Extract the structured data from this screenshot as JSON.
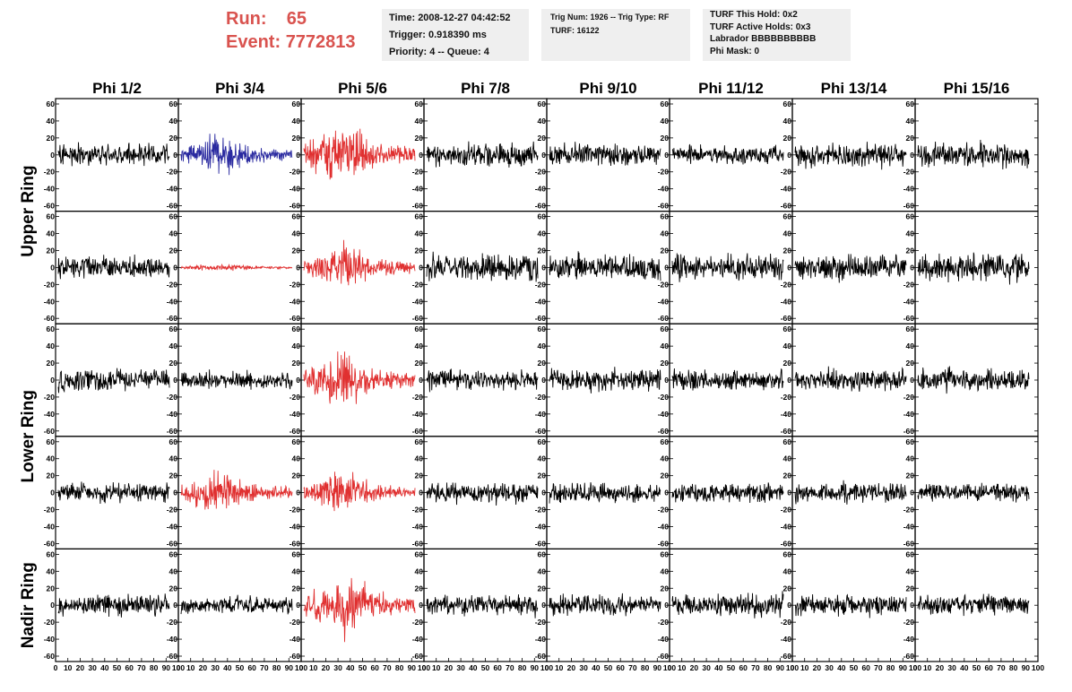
{
  "header": {
    "run_label": "Run:",
    "run_value": "65",
    "event_label": "Event:",
    "event_value": "7772813"
  },
  "info_panels": [
    {
      "lines": [
        "Time: 2008-12-27 04:42:52",
        "Trigger: 0.918390 ms",
        "Priority: 4 -- Queue: 4"
      ]
    },
    {
      "lines": [
        "Trig Num: 1926 -- Trig Type: RF",
        "",
        "",
        "TURF: 16122"
      ]
    },
    {
      "lines": [
        "TURF This Hold: 0x2",
        "TURF Active Holds: 0x3",
        "Labrador BBBBBBBBBB",
        "Phi Mask: 0"
      ]
    }
  ],
  "colors": {
    "normal_trace": "#000000",
    "triggered_trace": "#e03030",
    "highlight_trace": "#2a2aa0",
    "run_text": "#d9534f",
    "panel_bg": "#efefef"
  },
  "chart_data": {
    "type": "line",
    "description_grid": "waveform matrix",
    "columns": [
      "Phi 1/2",
      "Phi 3/4",
      "Phi 5/6",
      "Phi 7/8",
      "Phi 9/10",
      "Phi 11/12",
      "Phi 13/14",
      "Phi 15/16"
    ],
    "rows": [
      "Upper Ring",
      "",
      "Lower Ring",
      "",
      "Nadir Ring"
    ],
    "row_labels": [
      {
        "label": "Upper Ring",
        "rows": [
          0,
          1
        ]
      },
      {
        "label": "Lower Ring",
        "rows": [
          2,
          3
        ]
      },
      {
        "label": "Nadir Ring",
        "rows": [
          4
        ]
      }
    ],
    "ylim": [
      -60,
      60
    ],
    "yticks": [
      -60,
      -40,
      -20,
      0,
      20,
      40,
      60
    ],
    "xlim": [
      0,
      100
    ],
    "xticks": [
      0,
      10,
      20,
      30,
      40,
      50,
      60,
      70,
      80,
      90,
      100
    ],
    "x_tick_labels": [
      "0",
      "10",
      "20",
      "30",
      "40",
      "50",
      "60",
      "70",
      "80",
      "90",
      "100"
    ],
    "grid": false,
    "traces": [
      [
        "black",
        "blue",
        "red",
        "black",
        "black",
        "black",
        "black",
        "black"
      ],
      [
        "black",
        "red",
        "red",
        "black",
        "black",
        "black",
        "black",
        "black"
      ],
      [
        "black",
        "black",
        "red",
        "black",
        "black",
        "black",
        "black",
        "black"
      ],
      [
        "black",
        "red",
        "red",
        "black",
        "black",
        "black",
        "black",
        "black"
      ],
      [
        "black",
        "black",
        "red",
        "black",
        "black",
        "black",
        "black",
        "black"
      ]
    ],
    "amplitudes": [
      [
        18,
        22,
        30,
        18,
        18,
        15,
        20,
        20
      ],
      [
        18,
        4,
        24,
        22,
        20,
        22,
        20,
        22
      ],
      [
        18,
        14,
        30,
        16,
        18,
        16,
        18,
        18
      ],
      [
        16,
        22,
        22,
        16,
        16,
        16,
        16,
        16
      ],
      [
        18,
        14,
        32,
        16,
        16,
        18,
        18,
        16
      ]
    ]
  }
}
